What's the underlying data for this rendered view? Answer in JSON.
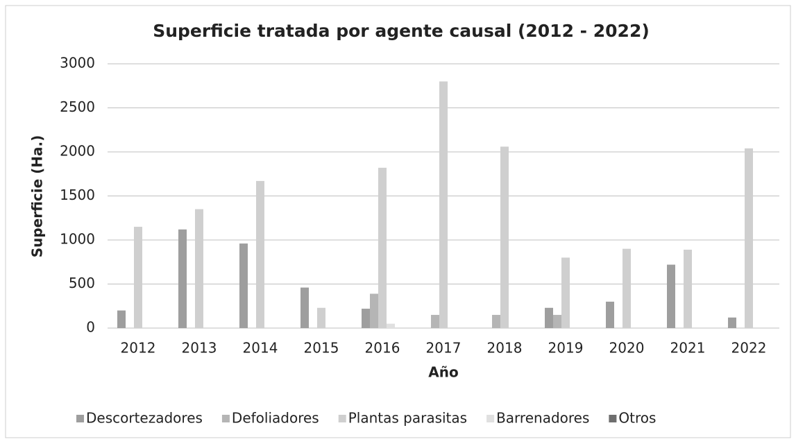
{
  "chart_data": {
    "type": "bar",
    "title": "Superficie tratada por agente causal (2012 - 2022)",
    "x_label": "Año",
    "y_label": "Superficie (Ha.)",
    "categories": [
      "2012",
      "2013",
      "2014",
      "2015",
      "2016",
      "2017",
      "2018",
      "2019",
      "2020",
      "2021",
      "2022"
    ],
    "series": [
      {
        "name": "Descortezadores",
        "color": "#9e9e9e",
        "values": [
          200,
          1120,
          960,
          460,
          220,
          0,
          0,
          230,
          300,
          720,
          120
        ]
      },
      {
        "name": "Defoliadores",
        "color": "#b5b5b5",
        "values": [
          0,
          0,
          0,
          0,
          390,
          150,
          150,
          150,
          0,
          0,
          0
        ]
      },
      {
        "name": "Plantas parasitas",
        "color": "#cfcfcf",
        "values": [
          1150,
          1350,
          1670,
          230,
          1820,
          2800,
          2060,
          800,
          900,
          890,
          2040
        ]
      },
      {
        "name": "Barrenadores",
        "color": "#e0e0e0",
        "values": [
          0,
          0,
          0,
          0,
          50,
          0,
          0,
          0,
          0,
          0,
          0
        ]
      },
      {
        "name": "Otros",
        "color": "#6e6e6e",
        "values": [
          0,
          0,
          0,
          0,
          0,
          0,
          0,
          0,
          0,
          0,
          0
        ]
      }
    ],
    "ylim": [
      0,
      3000
    ],
    "yticks": [
      0,
      500,
      1000,
      1500,
      2000,
      2500,
      3000
    ],
    "grid": true
  }
}
